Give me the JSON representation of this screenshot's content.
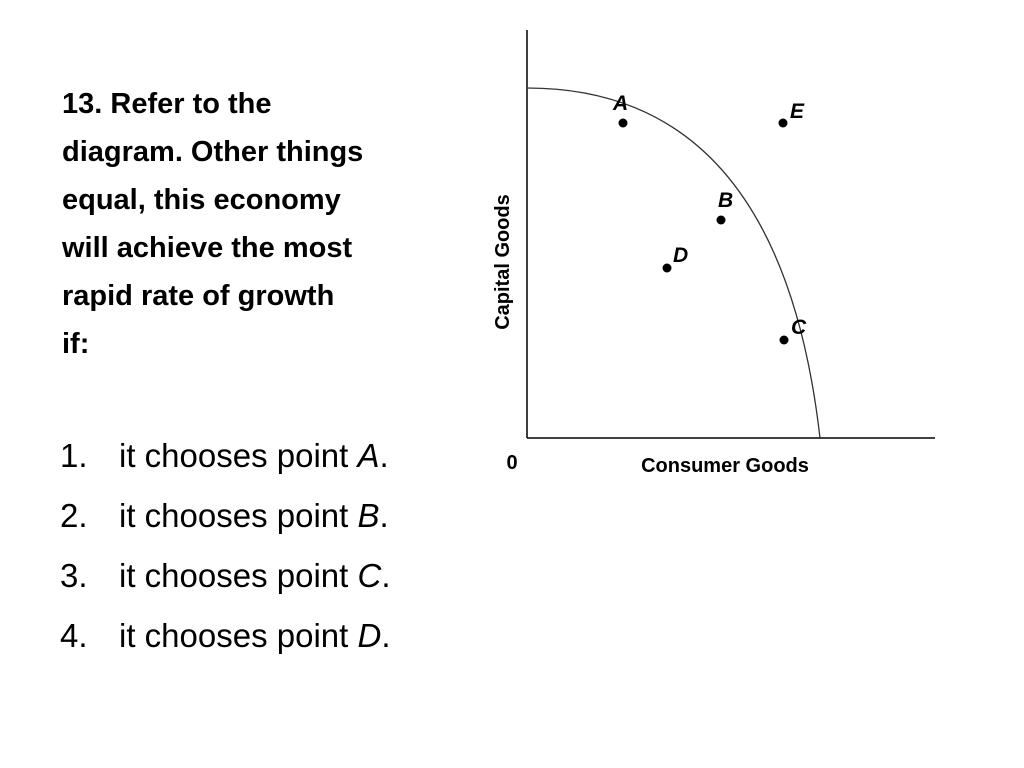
{
  "question": {
    "lines": [
      "13. Refer to the",
      "diagram. Other things",
      "equal, this economy",
      "will achieve the most",
      "rapid rate of growth",
      "if:"
    ]
  },
  "answers": [
    {
      "number": "1.",
      "text": "it chooses point ",
      "point": "A",
      "end": "."
    },
    {
      "number": "2.",
      "text": "it chooses point ",
      "point": "B",
      "end": "."
    },
    {
      "number": "3.",
      "text": "it chooses point ",
      "point": "C",
      "end": "."
    },
    {
      "number": "4.",
      "text": "it chooses point ",
      "point": "D",
      "end": "."
    }
  ],
  "diagram": {
    "y_axis_label": "Capital Goods",
    "x_axis_label": "Consumer Goods",
    "origin_label": "0",
    "point_labels": {
      "A": "A",
      "B": "B",
      "C": "C",
      "D": "D",
      "E": "E"
    }
  }
}
